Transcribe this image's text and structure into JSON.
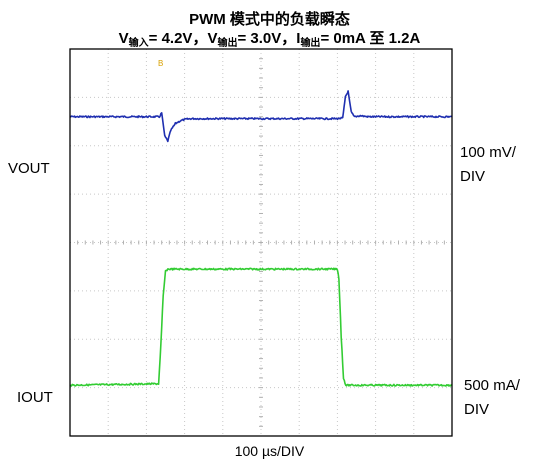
{
  "chart_data": {
    "type": "line",
    "title": "PWM 模式中的负载瞬态",
    "subtitle": {
      "vin_sym": "V",
      "vin_sub": "输入",
      "vin_val": "= 4.2V，",
      "vout_sym": "V",
      "vout_sub": "输出",
      "vout_val": "= 3.0V，",
      "iout_sym": "I",
      "iout_sub": "输出",
      "iout_val": "= 0mA 至 1.2A"
    },
    "xlabel": "100 µs/DIV",
    "x_unit": "µs",
    "xlim": [
      0,
      1000
    ],
    "grid": true,
    "divisions": {
      "x": 10,
      "y": 8
    },
    "marker": "B",
    "series": [
      {
        "name": "VOUT",
        "color": "#1f2fb0",
        "scale_line1": "100 mV/",
        "scale_line2": "DIV",
        "scale_mV_per_div": 100,
        "x": [
          0,
          234,
          240,
          248,
          256,
          264,
          276,
          290,
          305,
          320,
          700,
          714,
          721,
          728,
          736,
          744,
          760,
          780,
          1000
        ],
        "y": [
          0,
          0,
          0.08,
          -0.4,
          -0.5,
          -0.28,
          -0.14,
          -0.08,
          -0.05,
          -0.04,
          -0.04,
          -0.03,
          0.42,
          0.52,
          0.1,
          0.0,
          0.02,
          0.0,
          0
        ]
      },
      {
        "name": "IOUT",
        "color": "#33cc33",
        "scale_line1": "500 mA/",
        "scale_line2": "DIV",
        "scale_mA_per_div": 500,
        "x": [
          0,
          232,
          238,
          244,
          250,
          256,
          700,
          704,
          710,
          716,
          722,
          1000
        ],
        "y": [
          0,
          0.03,
          0.85,
          1.85,
          2.35,
          2.4,
          2.4,
          2.2,
          1.0,
          0.15,
          0.0,
          0
        ]
      }
    ]
  }
}
